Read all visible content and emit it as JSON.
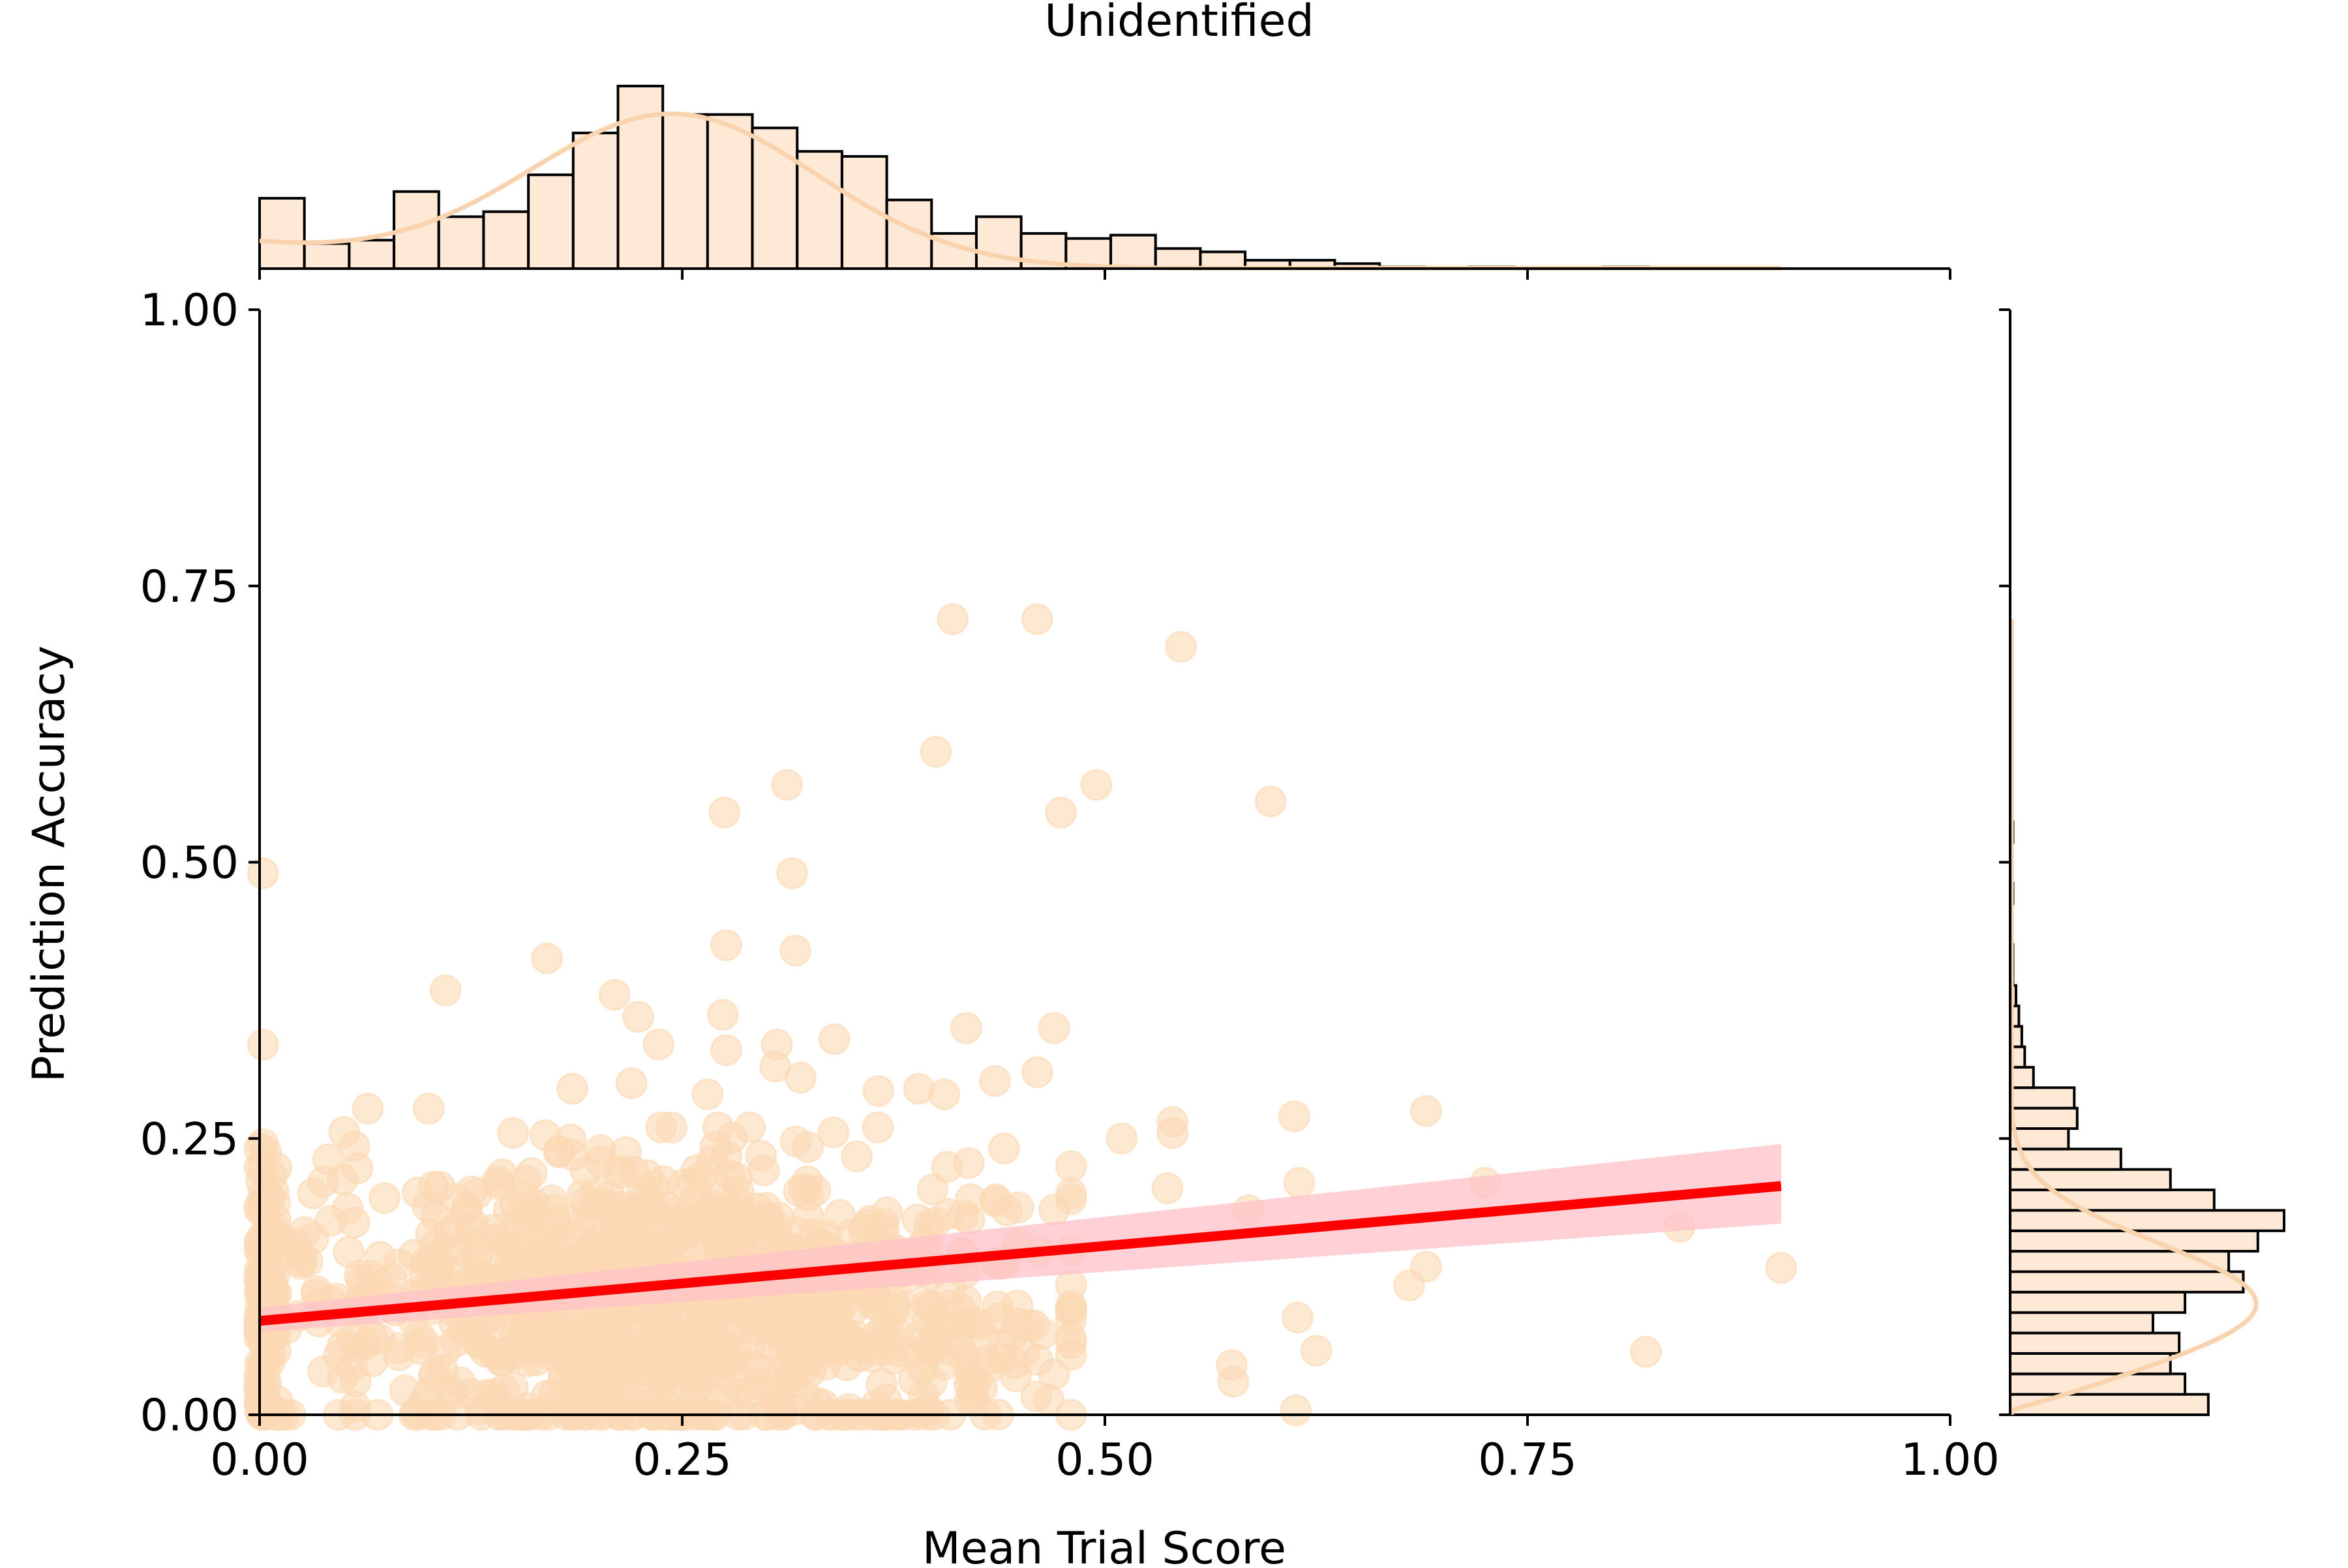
{
  "chart_data": {
    "type": "scatter",
    "title": "Unidentified",
    "xlabel": "Mean Trial Score",
    "ylabel": "Prediction Accuracy",
    "xlim": [
      0,
      1
    ],
    "ylim": [
      0,
      1
    ],
    "xticks": [
      "0.00",
      "0.25",
      "0.50",
      "0.75",
      "1.00"
    ],
    "yticks": [
      "0.00",
      "0.25",
      "0.50",
      "0.75",
      "1.00"
    ],
    "grid": false,
    "colors": {
      "points": "#fcd9b4",
      "hist_fill": "#fde9d6",
      "kde": "#f9d3ad",
      "regression_line": "#ff0000",
      "confidence_band": "#ffc2c8"
    },
    "regression": {
      "x": [
        0.0,
        0.9
      ],
      "y": [
        0.085,
        0.207
      ],
      "ci_low": [
        0.075,
        0.173
      ],
      "ci_high": [
        0.097,
        0.245
      ]
    },
    "points_highlight": [
      [
        0.41,
        0.72
      ],
      [
        0.46,
        0.72
      ],
      [
        0.545,
        0.695
      ],
      [
        0.4,
        0.6
      ],
      [
        0.312,
        0.57
      ],
      [
        0.495,
        0.57
      ],
      [
        0.598,
        0.555
      ],
      [
        0.275,
        0.545
      ],
      [
        0.474,
        0.545
      ],
      [
        0.315,
        0.49
      ],
      [
        0.002,
        0.49
      ],
      [
        0.276,
        0.425
      ],
      [
        0.317,
        0.42
      ],
      [
        0.17,
        0.413
      ],
      [
        0.11,
        0.384
      ],
      [
        0.21,
        0.38
      ],
      [
        0.274,
        0.362
      ],
      [
        0.224,
        0.36
      ],
      [
        0.47,
        0.35
      ],
      [
        0.418,
        0.35
      ],
      [
        0.34,
        0.34
      ],
      [
        0.236,
        0.335
      ],
      [
        0.002,
        0.335
      ],
      [
        0.306,
        0.335
      ],
      [
        0.276,
        0.33
      ],
      [
        0.305,
        0.315
      ],
      [
        0.46,
        0.31
      ],
      [
        0.435,
        0.302
      ],
      [
        0.32,
        0.305
      ],
      [
        0.22,
        0.3
      ],
      [
        0.185,
        0.295
      ],
      [
        0.39,
        0.295
      ],
      [
        0.265,
        0.29
      ],
      [
        0.366,
        0.293
      ],
      [
        0.405,
        0.29
      ],
      [
        0.612,
        0.27
      ],
      [
        0.69,
        0.275
      ],
      [
        0.064,
        0.277
      ],
      [
        0.1,
        0.277
      ],
      [
        0.54,
        0.265
      ],
      [
        0.05,
        0.256
      ],
      [
        0.15,
        0.255
      ],
      [
        0.002,
        0.245
      ],
      [
        0.056,
        0.243
      ],
      [
        0.54,
        0.255
      ],
      [
        0.51,
        0.25
      ],
      [
        0.725,
        0.21
      ],
      [
        0.615,
        0.21
      ],
      [
        0.84,
        0.17
      ],
      [
        0.9,
        0.133
      ],
      [
        0.82,
        0.057
      ],
      [
        0.585,
        0.185
      ],
      [
        0.537,
        0.205
      ],
      [
        0.575,
        0.045
      ],
      [
        0.576,
        0.03
      ],
      [
        0.625,
        0.058
      ],
      [
        0.614,
        0.088
      ],
      [
        0.68,
        0.117
      ],
      [
        0.69,
        0.134
      ],
      [
        0.613,
        0.004
      ]
    ],
    "point_cloud": {
      "n": 1100,
      "x_center": 0.24,
      "x_spread": 0.12,
      "y_center": 0.1,
      "y_spread": 0.07
    },
    "x_histogram": {
      "bin_start": 0.0,
      "bin_width": 0.0265,
      "counts": [
        42,
        15,
        17,
        46,
        31,
        34,
        56,
        81,
        109,
        92,
        92,
        84,
        70,
        67,
        41,
        21,
        31,
        21,
        18,
        20,
        12,
        10,
        5,
        5,
        3,
        1,
        0,
        1,
        0,
        0,
        1
      ]
    },
    "y_histogram": {
      "bin_start": 0.0,
      "bin_width": 0.0185,
      "counts": [
        68,
        60,
        55,
        58,
        49,
        60,
        80,
        75,
        85,
        94,
        70,
        55,
        38,
        20,
        23,
        22,
        8,
        5,
        4,
        3,
        2,
        1,
        1,
        0,
        0,
        1,
        0,
        0,
        1
      ]
    }
  }
}
